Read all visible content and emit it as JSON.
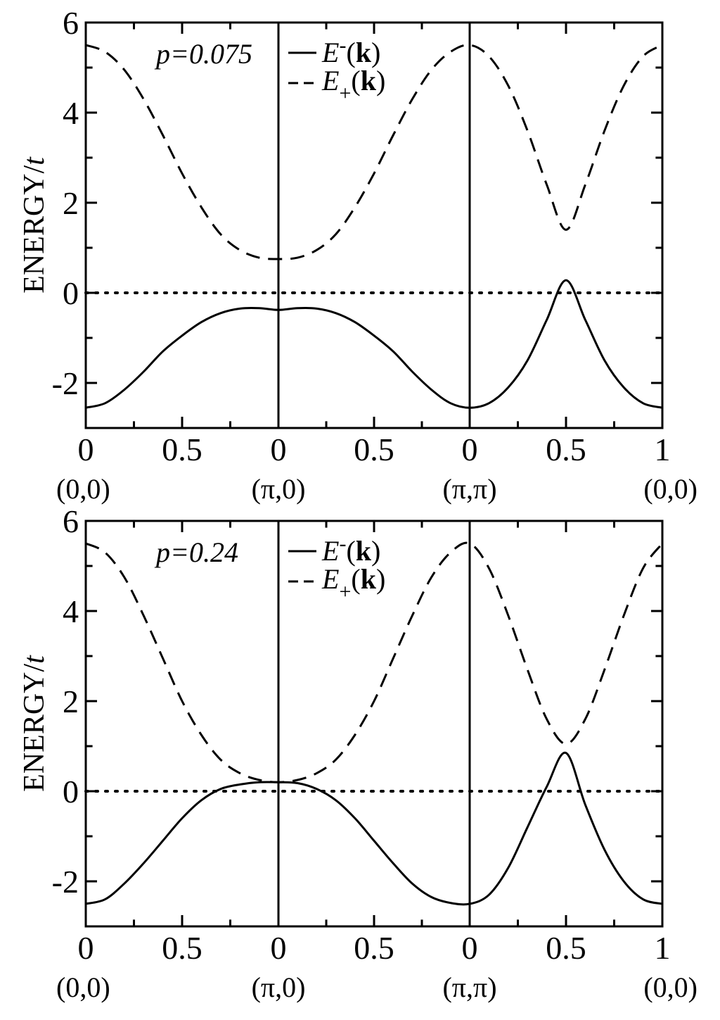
{
  "chart_data": [
    {
      "type": "line",
      "panel": "top",
      "annotation": "p=0.075",
      "ylabel": "ENERGY/",
      "ylabel_var": "t",
      "xlabel": "",
      "ylim": [
        -3,
        6
      ],
      "yticks": [
        "-2",
        "0",
        "2",
        "4",
        "6"
      ],
      "segments": [
        {
          "xticks": [
            "0",
            "0.5"
          ]
        },
        {
          "xticks": [
            "0",
            "0.5"
          ]
        },
        {
          "xticks": [
            "0",
            "0.5",
            "1"
          ]
        }
      ],
      "kpoints": [
        "(0,0)",
        "(π,0)",
        "(π,π)",
        "(0,0)"
      ],
      "legend": {
        "position": "top-center",
        "minus": {
          "e": "E",
          "sub": "-",
          "paren_open": "(",
          "k": "k",
          "paren_close": ")"
        },
        "plus": {
          "e": "E",
          "sub": "+",
          "paren_open": "(",
          "k": "k",
          "paren_close": ")"
        }
      },
      "zero_line": {
        "style": "dotted",
        "y": 0
      },
      "series": [
        {
          "name": "E-(k)",
          "style": "solid",
          "points": [
            [
              0,
              -2.55
            ],
            [
              0.1,
              -2.45
            ],
            [
              0.2,
              -2.15
            ],
            [
              0.3,
              -1.75
            ],
            [
              0.4,
              -1.3
            ],
            [
              0.5,
              -0.95
            ],
            [
              0.6,
              -0.65
            ],
            [
              0.7,
              -0.45
            ],
            [
              0.8,
              -0.35
            ],
            [
              0.9,
              -0.34
            ],
            [
              1.0,
              -0.38
            ],
            [
              1.1,
              -0.34
            ],
            [
              1.2,
              -0.35
            ],
            [
              1.3,
              -0.45
            ],
            [
              1.4,
              -0.65
            ],
            [
              1.5,
              -0.95
            ],
            [
              1.6,
              -1.3
            ],
            [
              1.7,
              -1.75
            ],
            [
              1.8,
              -2.15
            ],
            [
              1.9,
              -2.45
            ],
            [
              2.0,
              -2.55
            ],
            [
              2.1,
              -2.45
            ],
            [
              2.2,
              -2.1
            ],
            [
              2.3,
              -1.5
            ],
            [
              2.4,
              -0.6
            ],
            [
              2.5,
              0.28
            ],
            [
              2.6,
              -0.6
            ],
            [
              2.7,
              -1.5
            ],
            [
              2.8,
              -2.1
            ],
            [
              2.9,
              -2.45
            ],
            [
              3.0,
              -2.55
            ]
          ]
        },
        {
          "name": "E+(k)",
          "style": "dashed",
          "points": [
            [
              0,
              5.5
            ],
            [
              0.1,
              5.35
            ],
            [
              0.2,
              4.95
            ],
            [
              0.3,
              4.3
            ],
            [
              0.4,
              3.5
            ],
            [
              0.5,
              2.65
            ],
            [
              0.6,
              1.9
            ],
            [
              0.7,
              1.3
            ],
            [
              0.8,
              0.95
            ],
            [
              0.9,
              0.78
            ],
            [
              1.0,
              0.75
            ],
            [
              1.1,
              0.78
            ],
            [
              1.2,
              0.95
            ],
            [
              1.3,
              1.3
            ],
            [
              1.4,
              1.9
            ],
            [
              1.5,
              2.65
            ],
            [
              1.6,
              3.5
            ],
            [
              1.7,
              4.3
            ],
            [
              1.8,
              4.95
            ],
            [
              1.9,
              5.35
            ],
            [
              2.0,
              5.5
            ],
            [
              2.1,
              5.25
            ],
            [
              2.2,
              4.6
            ],
            [
              2.3,
              3.6
            ],
            [
              2.4,
              2.4
            ],
            [
              2.5,
              1.4
            ],
            [
              2.6,
              2.4
            ],
            [
              2.7,
              3.6
            ],
            [
              2.8,
              4.6
            ],
            [
              2.9,
              5.25
            ],
            [
              3.0,
              5.5
            ]
          ]
        }
      ]
    },
    {
      "type": "line",
      "panel": "bottom",
      "annotation": "p=0.24",
      "ylabel": "ENERGY/",
      "ylabel_var": "t",
      "xlabel": "",
      "ylim": [
        -3,
        6
      ],
      "yticks": [
        "-2",
        "0",
        "2",
        "4",
        "6"
      ],
      "segments": [
        {
          "xticks": [
            "0",
            "0.5"
          ]
        },
        {
          "xticks": [
            "0",
            "0.5"
          ]
        },
        {
          "xticks": [
            "0",
            "0.5",
            "1"
          ]
        }
      ],
      "kpoints": [
        "(0,0)",
        "(π,0)",
        "(π,π)",
        "(0,0)"
      ],
      "legend": {
        "position": "top-center",
        "minus": {
          "e": "E",
          "sub": "-",
          "paren_open": "(",
          "k": "k",
          "paren_close": ")"
        },
        "plus": {
          "e": "E",
          "sub": "+",
          "paren_open": "(",
          "k": "k",
          "paren_close": ")"
        }
      },
      "zero_line": {
        "style": "dotted",
        "y": 0
      },
      "series": [
        {
          "name": "E-(k)",
          "style": "solid",
          "points": [
            [
              0,
              -2.5
            ],
            [
              0.1,
              -2.4
            ],
            [
              0.2,
              -2.05
            ],
            [
              0.3,
              -1.6
            ],
            [
              0.4,
              -1.1
            ],
            [
              0.5,
              -0.6
            ],
            [
              0.6,
              -0.2
            ],
            [
              0.7,
              0.05
            ],
            [
              0.8,
              0.15
            ],
            [
              0.9,
              0.2
            ],
            [
              1.0,
              0.2
            ],
            [
              1.1,
              0.18
            ],
            [
              1.2,
              0.05
            ],
            [
              1.3,
              -0.2
            ],
            [
              1.4,
              -0.6
            ],
            [
              1.5,
              -1.1
            ],
            [
              1.6,
              -1.6
            ],
            [
              1.7,
              -2.05
            ],
            [
              1.8,
              -2.35
            ],
            [
              1.9,
              -2.48
            ],
            [
              2.0,
              -2.5
            ],
            [
              2.1,
              -2.3
            ],
            [
              2.2,
              -1.7
            ],
            [
              2.3,
              -0.8
            ],
            [
              2.4,
              0.1
            ],
            [
              2.5,
              0.85
            ],
            [
              2.6,
              -0.3
            ],
            [
              2.7,
              -1.3
            ],
            [
              2.8,
              -2.0
            ],
            [
              2.9,
              -2.4
            ],
            [
              3.0,
              -2.5
            ]
          ]
        },
        {
          "name": "E+(k)",
          "style": "dashed",
          "points": [
            [
              0,
              5.5
            ],
            [
              0.1,
              5.3
            ],
            [
              0.2,
              4.75
            ],
            [
              0.3,
              3.9
            ],
            [
              0.4,
              2.95
            ],
            [
              0.5,
              2.0
            ],
            [
              0.6,
              1.25
            ],
            [
              0.7,
              0.7
            ],
            [
              0.8,
              0.4
            ],
            [
              0.9,
              0.25
            ],
            [
              1.0,
              0.2
            ],
            [
              1.1,
              0.25
            ],
            [
              1.2,
              0.4
            ],
            [
              1.3,
              0.7
            ],
            [
              1.4,
              1.25
            ],
            [
              1.5,
              2.0
            ],
            [
              1.6,
              2.95
            ],
            [
              1.7,
              3.9
            ],
            [
              1.8,
              4.75
            ],
            [
              1.9,
              5.3
            ],
            [
              2.0,
              5.5
            ],
            [
              2.1,
              4.95
            ],
            [
              2.2,
              3.9
            ],
            [
              2.3,
              2.7
            ],
            [
              2.4,
              1.6
            ],
            [
              2.5,
              1.05
            ],
            [
              2.6,
              1.6
            ],
            [
              2.7,
              2.7
            ],
            [
              2.8,
              3.9
            ],
            [
              2.9,
              4.95
            ],
            [
              3.0,
              5.5
            ]
          ]
        }
      ]
    }
  ]
}
